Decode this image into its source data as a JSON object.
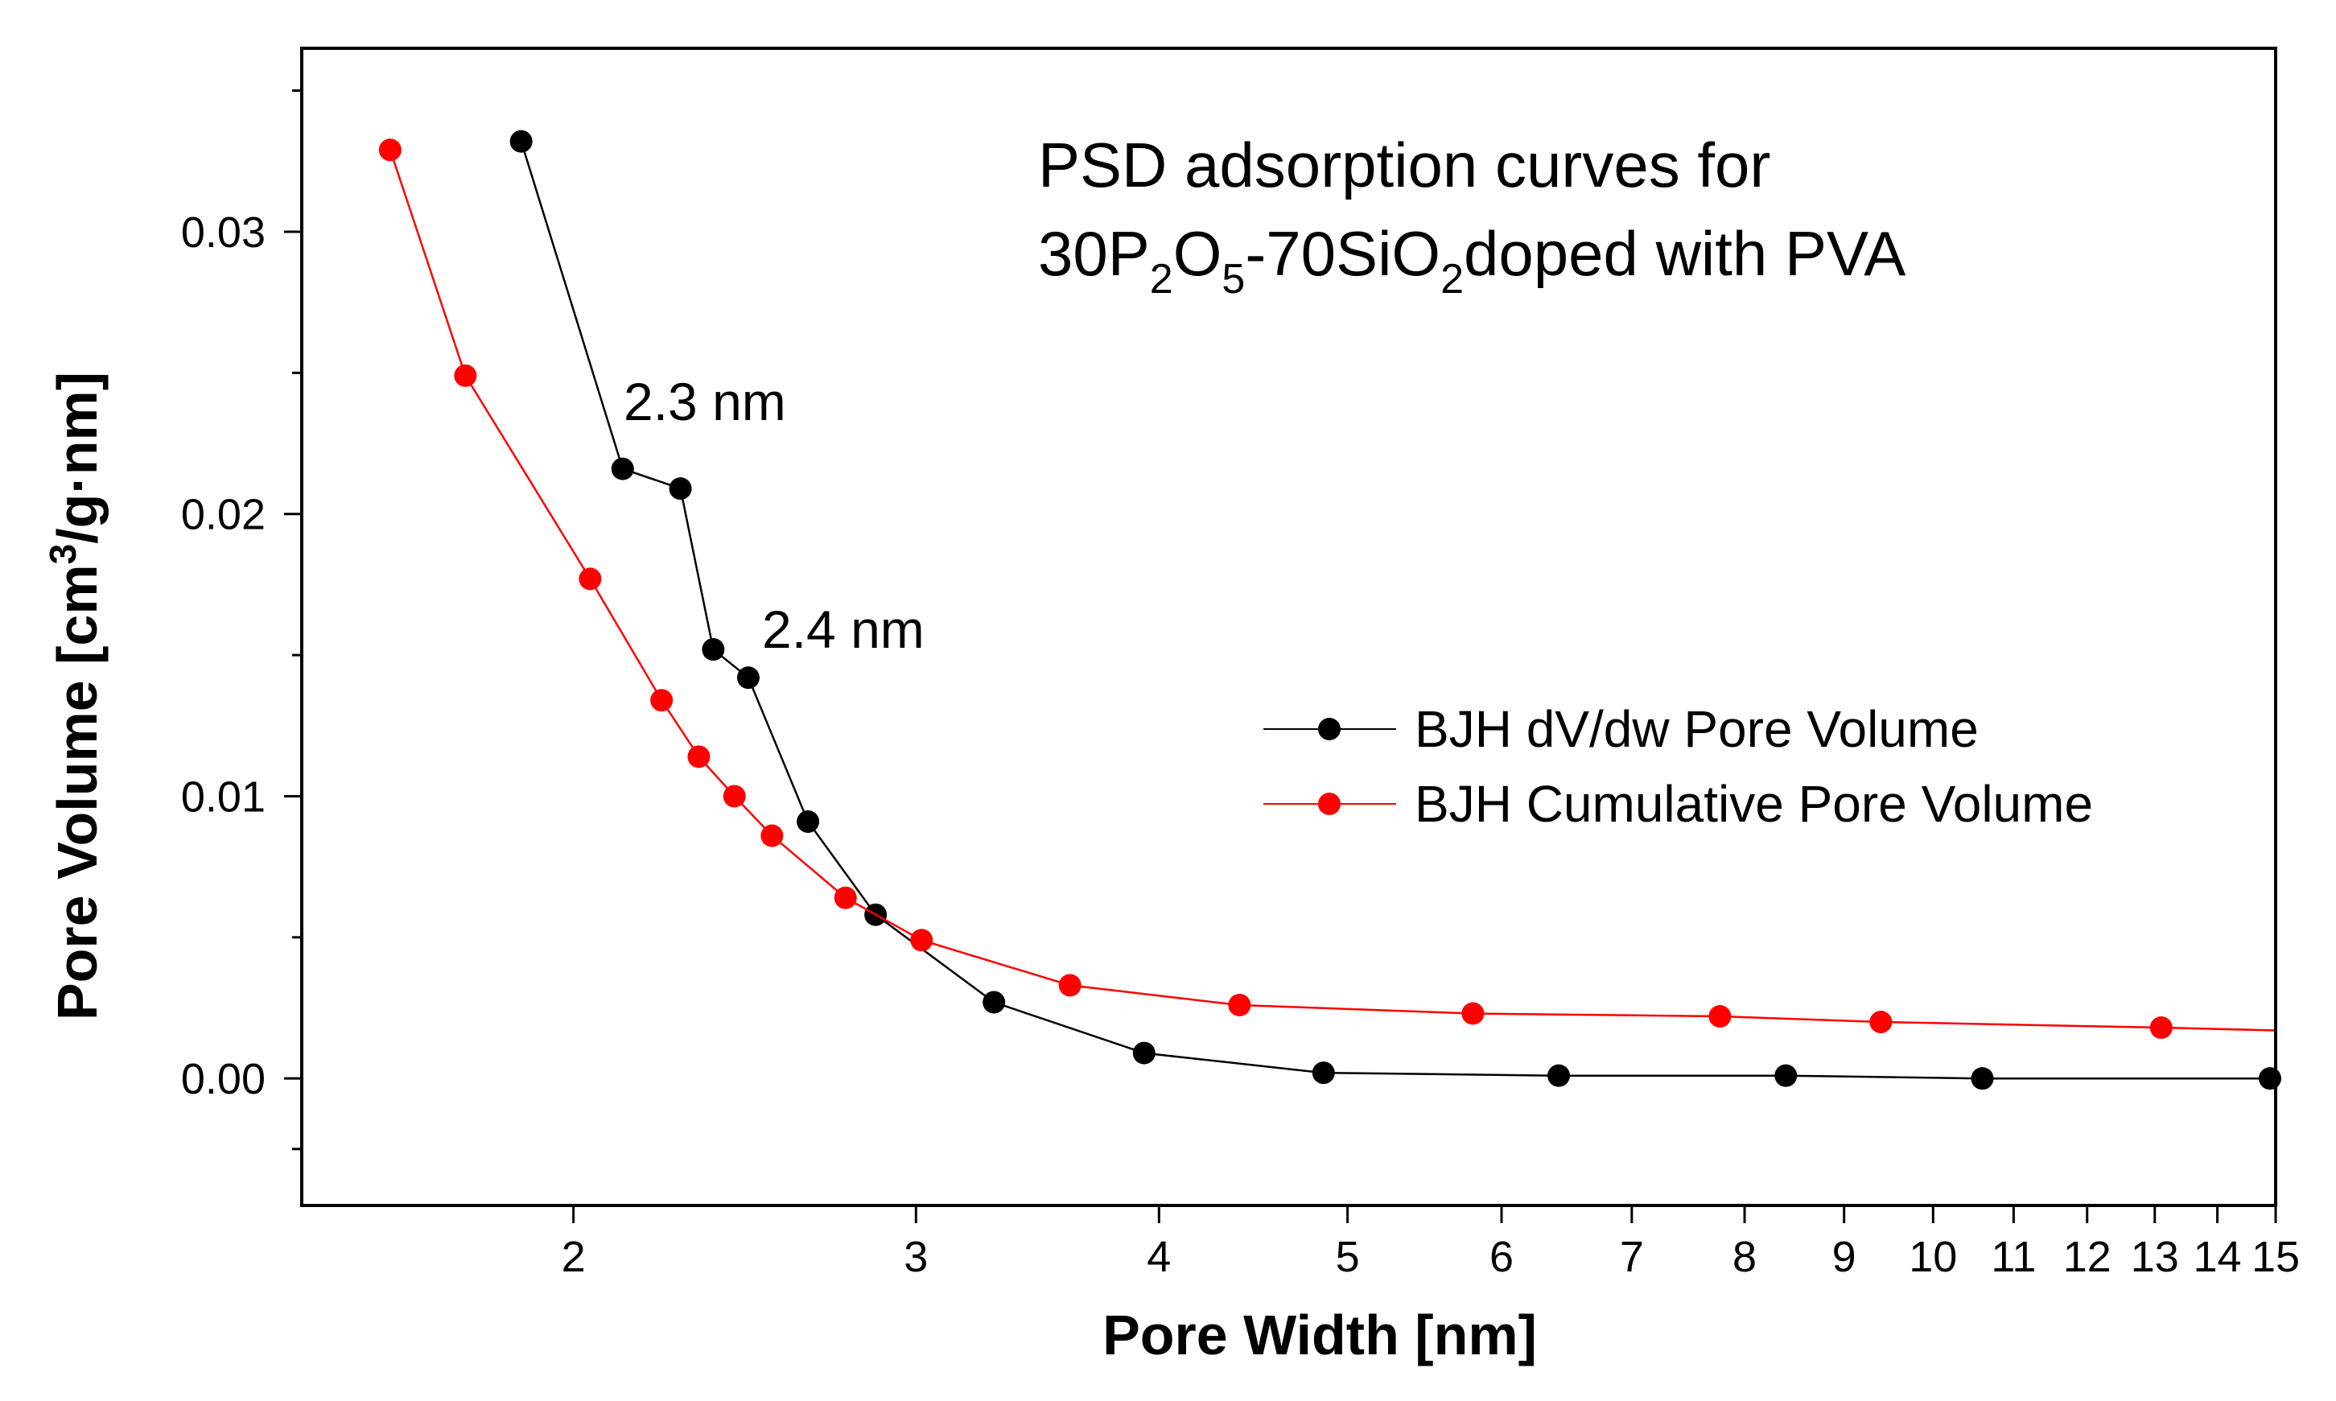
{
  "chart_data": {
    "type": "line",
    "title_line1": "PSD adsorption curves for",
    "title_line2": {
      "parts": [
        {
          "text": "30P",
          "sub": false
        },
        {
          "text": "2",
          "sub": true
        },
        {
          "text": "O",
          "sub": false
        },
        {
          "text": "5",
          "sub": true
        },
        {
          "text": "-70SiO",
          "sub": false
        },
        {
          "text": "2",
          "sub": true
        },
        {
          "text": "doped with PVA",
          "sub": false
        }
      ]
    },
    "xlabel": "Pore Width [nm]",
    "ylabel": "Pore Volume [cm³/g·nm]",
    "ylabel_parts": [
      {
        "text": "Pore Volume [cm",
        "sup": false
      },
      {
        "text": "3",
        "sup": true
      },
      {
        "text": "/g·nm]",
        "sup": false
      }
    ],
    "x_scale": "log",
    "xlim": [
      1.45,
      15
    ],
    "ylim": [
      -0.0045,
      0.0365
    ],
    "x_ticks": [
      2,
      3,
      4,
      5,
      6,
      7,
      8,
      9,
      10,
      11,
      12,
      13,
      14,
      15
    ],
    "x_tick_labels": [
      "2",
      "3",
      "4",
      "5",
      "6",
      "7",
      "8",
      "9",
      "10",
      "11",
      "12",
      "13",
      "14",
      "15"
    ],
    "y_ticks": [
      0.0,
      0.01,
      0.02,
      0.03
    ],
    "y_tick_labels": [
      "0.00",
      "0.01",
      "0.02",
      "0.03"
    ],
    "y_minor_ticks": [
      -0.0025,
      0.005,
      0.015,
      0.025,
      0.035
    ],
    "series": [
      {
        "name": "BJH dV/dw Pore Volume",
        "color": "#000000",
        "x": [
          1.88,
          2.12,
          2.27,
          2.36,
          2.46,
          2.64,
          2.86,
          3.29,
          3.93,
          4.86,
          6.42,
          8.4,
          10.6,
          14.9
        ],
        "y": [
          0.0332,
          0.0216,
          0.0209,
          0.0152,
          0.0142,
          0.0091,
          0.0058,
          0.0027,
          0.0009,
          0.0002,
          0.0001,
          0.0001,
          0.0,
          0.0
        ]
      },
      {
        "name": "BJH Cumulative Pore Volume",
        "color": "#ff0000",
        "x": [
          1.61,
          1.76,
          2.04,
          2.22,
          2.32,
          2.42,
          2.53,
          2.76,
          3.02,
          3.6,
          4.4,
          5.8,
          7.77,
          9.4,
          13.1
        ],
        "y": [
          0.0329,
          0.0249,
          0.0177,
          0.0134,
          0.0114,
          0.01,
          0.0086,
          0.0064,
          0.0049,
          0.0033,
          0.0026,
          0.0023,
          0.0022,
          0.002,
          0.0018
        ],
        "tail_x": 15,
        "tail_y": 0.0017
      }
    ],
    "annotations": [
      {
        "text": "2.3 nm",
        "x": 2.27,
        "y": 0.0209
      },
      {
        "text": "2.4 nm",
        "x": 2.46,
        "y": 0.0142
      }
    ],
    "legend_position": "center-right",
    "grid": false
  }
}
